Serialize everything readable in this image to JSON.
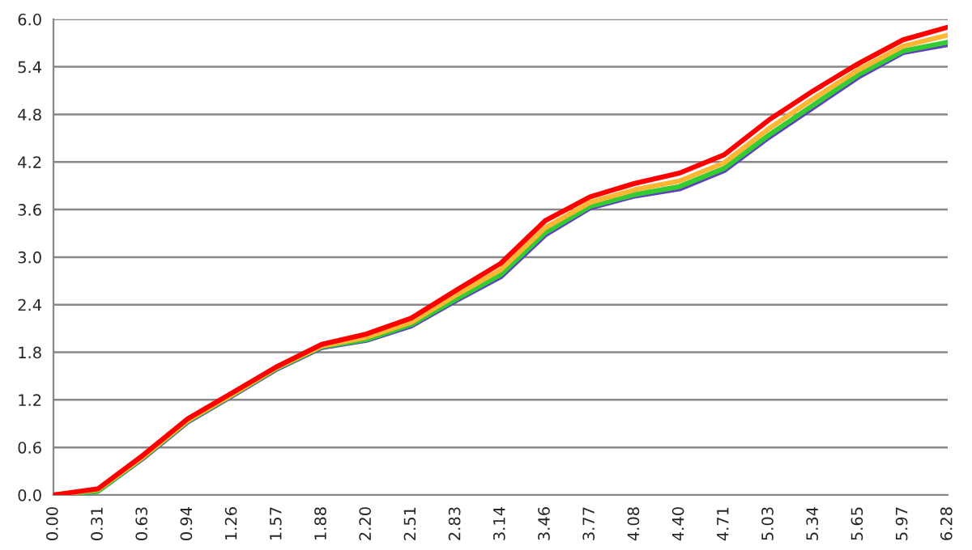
{
  "chart_data": {
    "type": "line",
    "categories": [
      "0.00",
      "0.31",
      "0.63",
      "0.94",
      "1.26",
      "1.57",
      "1.88",
      "2.20",
      "2.51",
      "2.83",
      "3.14",
      "3.46",
      "3.77",
      "4.08",
      "4.40",
      "4.71",
      "5.03",
      "5.34",
      "5.65",
      "5.97",
      "6.28"
    ],
    "series": [
      {
        "color": "#6040c0",
        "values": [
          0,
          0.05,
          0.46,
          0.92,
          1.25,
          1.59,
          1.86,
          1.95,
          2.13,
          2.45,
          2.75,
          3.28,
          3.62,
          3.77,
          3.86,
          4.09,
          4.51,
          4.89,
          5.27,
          5.58,
          5.68
        ]
      },
      {
        "color": "#33cc33",
        "values": [
          0,
          0.05,
          0.47,
          0.93,
          1.26,
          1.6,
          1.87,
          1.96,
          2.15,
          2.47,
          2.78,
          3.31,
          3.64,
          3.79,
          3.89,
          4.12,
          4.54,
          4.92,
          5.3,
          5.6,
          5.71
        ]
      },
      {
        "color": "#ffb733",
        "values": [
          0,
          0.07,
          0.48,
          0.94,
          1.27,
          1.61,
          1.88,
          1.99,
          2.18,
          2.52,
          2.84,
          3.37,
          3.69,
          3.85,
          3.96,
          4.19,
          4.62,
          5.0,
          5.36,
          5.66,
          5.8
        ]
      },
      {
        "color": "#ff0000",
        "values": [
          0,
          0.08,
          0.5,
          0.96,
          1.29,
          1.62,
          1.9,
          2.03,
          2.23,
          2.58,
          2.92,
          3.46,
          3.76,
          3.93,
          4.06,
          4.29,
          4.73,
          5.1,
          5.44,
          5.74,
          5.9
        ]
      }
    ],
    "ylim": [
      0,
      6.0
    ],
    "yticks": [
      {
        "value": 0,
        "label": "0.0"
      },
      {
        "value": 0.6,
        "label": "0.6"
      },
      {
        "value": 1.2,
        "label": "1.2"
      },
      {
        "value": 1.8,
        "label": "1.8"
      },
      {
        "value": 2.4,
        "label": "2.4"
      },
      {
        "value": 3.0,
        "label": "3.0"
      },
      {
        "value": 3.6,
        "label": "3.6"
      },
      {
        "value": 4.2,
        "label": "4.2"
      },
      {
        "value": 4.8,
        "label": "4.8"
      },
      {
        "value": 5.4,
        "label": "5.4"
      },
      {
        "value": 6.0,
        "label": "6.0"
      }
    ],
    "grid": "y",
    "marker": "none",
    "line_style": "solid"
  }
}
